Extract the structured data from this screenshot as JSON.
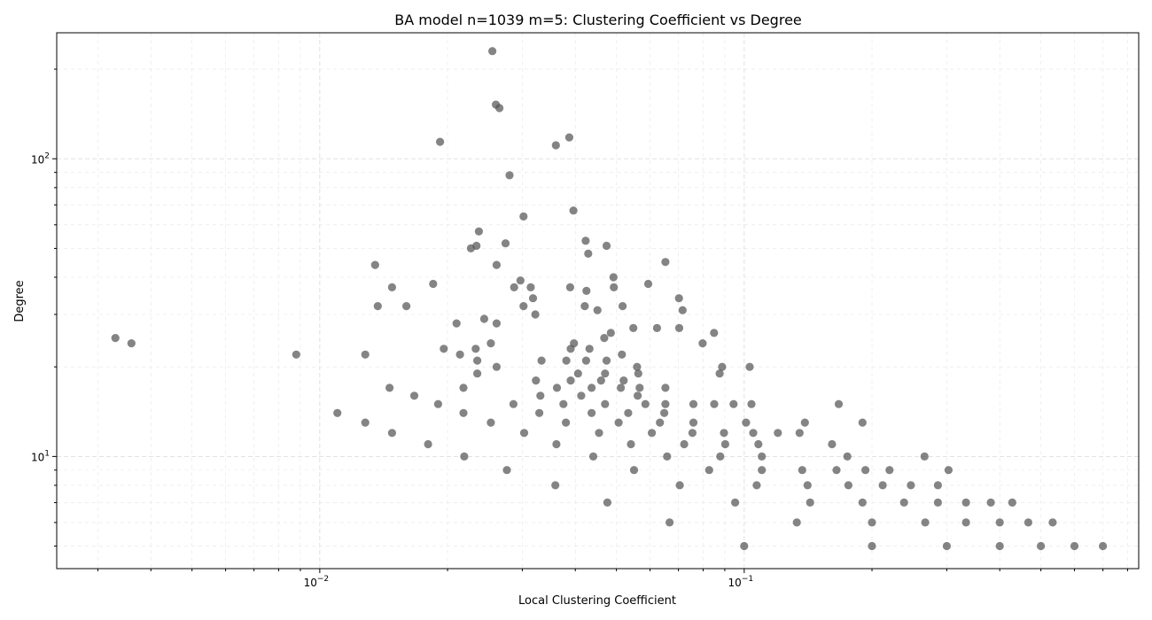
{
  "chart_data": {
    "type": "scatter",
    "title": "BA model n=1039 m=5: Clustering Coefficient vs Degree",
    "xlabel": "Local Clustering Coefficient",
    "ylabel": "Degree",
    "xscale": "log",
    "yscale": "log",
    "xlim": [
      0.0024,
      0.85
    ],
    "ylim": [
      4.2,
      265
    ],
    "grid": true,
    "x_ticks": [
      {
        "value": 0.01,
        "label_base": "10",
        "label_exp": "−2"
      },
      {
        "value": 0.1,
        "label_base": "10",
        "label_exp": "−1"
      }
    ],
    "y_ticks": [
      {
        "value": 10,
        "label_base": "10",
        "label_exp": "1"
      },
      {
        "value": 100,
        "label_base": "10",
        "label_exp": "2"
      }
    ],
    "point_color": "#555555",
    "points": [
      [
        0.0255,
        230
      ],
      [
        0.026,
        152
      ],
      [
        0.0265,
        148
      ],
      [
        0.0192,
        114
      ],
      [
        0.036,
        111
      ],
      [
        0.0387,
        118
      ],
      [
        0.028,
        88
      ],
      [
        0.0302,
        64
      ],
      [
        0.0396,
        67
      ],
      [
        0.0237,
        57
      ],
      [
        0.0274,
        52
      ],
      [
        0.0234,
        51
      ],
      [
        0.0227,
        50
      ],
      [
        0.0423,
        53
      ],
      [
        0.0474,
        51
      ],
      [
        0.0429,
        48
      ],
      [
        0.0135,
        44
      ],
      [
        0.0261,
        44
      ],
      [
        0.0652,
        45
      ],
      [
        0.0185,
        38
      ],
      [
        0.0148,
        37
      ],
      [
        0.0297,
        39
      ],
      [
        0.0287,
        37
      ],
      [
        0.0314,
        37
      ],
      [
        0.0389,
        37
      ],
      [
        0.0425,
        36
      ],
      [
        0.0492,
        40
      ],
      [
        0.0493,
        37
      ],
      [
        0.0594,
        38
      ],
      [
        0.0137,
        32
      ],
      [
        0.016,
        32
      ],
      [
        0.0318,
        34
      ],
      [
        0.0302,
        32
      ],
      [
        0.0421,
        32
      ],
      [
        0.0451,
        31
      ],
      [
        0.0517,
        32
      ],
      [
        0.0702,
        34
      ],
      [
        0.0716,
        31
      ],
      [
        0.0322,
        30
      ],
      [
        0.0244,
        29
      ],
      [
        0.021,
        28
      ],
      [
        0.0261,
        28
      ],
      [
        0.0548,
        27
      ],
      [
        0.0623,
        27
      ],
      [
        0.0703,
        27
      ],
      [
        0.0849,
        26
      ],
      [
        0.0033,
        25
      ],
      [
        0.0036,
        24
      ],
      [
        0.0468,
        25
      ],
      [
        0.0485,
        26
      ],
      [
        0.0798,
        24
      ],
      [
        0.0088,
        22
      ],
      [
        0.0128,
        22
      ],
      [
        0.0196,
        23
      ],
      [
        0.0214,
        22
      ],
      [
        0.0233,
        23
      ],
      [
        0.0253,
        24
      ],
      [
        0.039,
        23
      ],
      [
        0.0397,
        24
      ],
      [
        0.0432,
        23
      ],
      [
        0.0515,
        22
      ],
      [
        0.0235,
        21
      ],
      [
        0.0333,
        21
      ],
      [
        0.0381,
        21
      ],
      [
        0.0424,
        21
      ],
      [
        0.0474,
        21
      ],
      [
        0.0261,
        20
      ],
      [
        0.0559,
        20
      ],
      [
        0.0887,
        20
      ],
      [
        0.103,
        20
      ],
      [
        0.0235,
        19
      ],
      [
        0.0406,
        19
      ],
      [
        0.047,
        19
      ],
      [
        0.0563,
        19
      ],
      [
        0.0875,
        19
      ],
      [
        0.0323,
        18
      ],
      [
        0.039,
        18
      ],
      [
        0.046,
        18
      ],
      [
        0.052,
        18
      ],
      [
        0.0146,
        17
      ],
      [
        0.0218,
        17
      ],
      [
        0.0362,
        17
      ],
      [
        0.0437,
        17
      ],
      [
        0.0512,
        17
      ],
      [
        0.0567,
        17
      ],
      [
        0.0652,
        17
      ],
      [
        0.0167,
        16
      ],
      [
        0.0331,
        16
      ],
      [
        0.0413,
        16
      ],
      [
        0.0561,
        16
      ],
      [
        0.019,
        15
      ],
      [
        0.0286,
        15
      ],
      [
        0.0375,
        15
      ],
      [
        0.047,
        15
      ],
      [
        0.0585,
        15
      ],
      [
        0.0652,
        15
      ],
      [
        0.0759,
        15
      ],
      [
        0.085,
        15
      ],
      [
        0.0944,
        15
      ],
      [
        0.104,
        15
      ],
      [
        0.167,
        15
      ],
      [
        0.011,
        14
      ],
      [
        0.0218,
        14
      ],
      [
        0.0329,
        14
      ],
      [
        0.0437,
        14
      ],
      [
        0.0533,
        14
      ],
      [
        0.0648,
        14
      ],
      [
        0.0128,
        13
      ],
      [
        0.0253,
        13
      ],
      [
        0.038,
        13
      ],
      [
        0.0506,
        13
      ],
      [
        0.0633,
        13
      ],
      [
        0.0759,
        13
      ],
      [
        0.101,
        13
      ],
      [
        0.139,
        13
      ],
      [
        0.19,
        13
      ],
      [
        0.0148,
        12
      ],
      [
        0.0303,
        12
      ],
      [
        0.0455,
        12
      ],
      [
        0.0606,
        12
      ],
      [
        0.0755,
        12
      ],
      [
        0.0896,
        12
      ],
      [
        0.105,
        12
      ],
      [
        0.12,
        12
      ],
      [
        0.135,
        12
      ],
      [
        0.018,
        11
      ],
      [
        0.0361,
        11
      ],
      [
        0.0541,
        11
      ],
      [
        0.0722,
        11
      ],
      [
        0.0902,
        11
      ],
      [
        0.108,
        11
      ],
      [
        0.161,
        11
      ],
      [
        0.0219,
        10
      ],
      [
        0.0441,
        10
      ],
      [
        0.0658,
        10
      ],
      [
        0.0878,
        10
      ],
      [
        0.11,
        10
      ],
      [
        0.175,
        10
      ],
      [
        0.266,
        10
      ],
      [
        0.0276,
        9
      ],
      [
        0.055,
        9
      ],
      [
        0.0827,
        9
      ],
      [
        0.11,
        9
      ],
      [
        0.137,
        9
      ],
      [
        0.165,
        9
      ],
      [
        0.193,
        9
      ],
      [
        0.22,
        9
      ],
      [
        0.303,
        9
      ],
      [
        0.0359,
        8
      ],
      [
        0.0705,
        8
      ],
      [
        0.107,
        8
      ],
      [
        0.141,
        8
      ],
      [
        0.176,
        8
      ],
      [
        0.212,
        8
      ],
      [
        0.247,
        8
      ],
      [
        0.286,
        8
      ],
      [
        0.0476,
        7
      ],
      [
        0.0952,
        7
      ],
      [
        0.143,
        7
      ],
      [
        0.19,
        7
      ],
      [
        0.238,
        7
      ],
      [
        0.286,
        7
      ],
      [
        0.333,
        7
      ],
      [
        0.381,
        7
      ],
      [
        0.428,
        7
      ],
      [
        0.0667,
        6
      ],
      [
        0.133,
        6
      ],
      [
        0.2,
        6
      ],
      [
        0.267,
        6
      ],
      [
        0.333,
        6
      ],
      [
        0.4,
        6
      ],
      [
        0.467,
        6
      ],
      [
        0.533,
        6
      ],
      [
        0.1,
        5
      ],
      [
        0.2,
        5
      ],
      [
        0.3,
        5
      ],
      [
        0.4,
        5
      ],
      [
        0.5,
        5
      ],
      [
        0.6,
        5
      ],
      [
        0.7,
        5
      ]
    ]
  }
}
